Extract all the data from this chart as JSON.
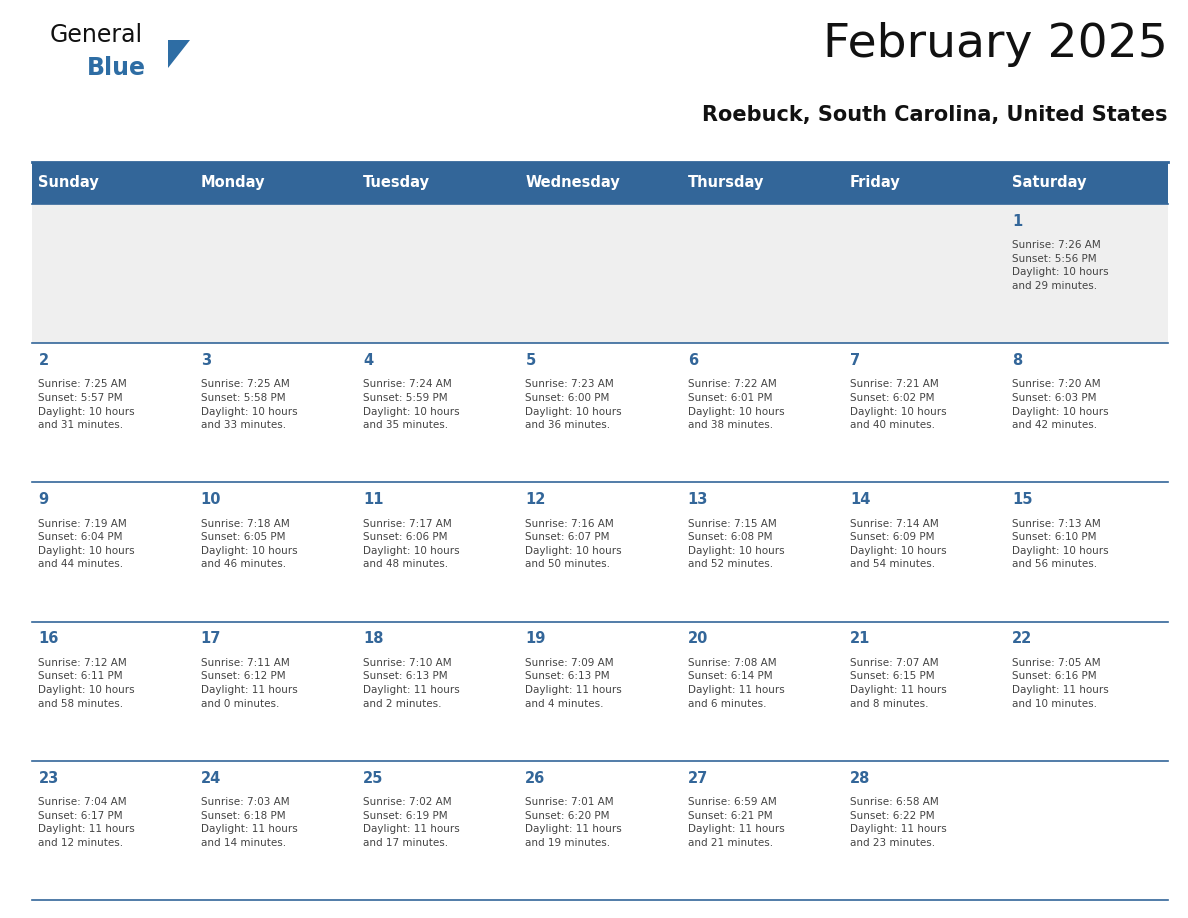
{
  "title": "February 2025",
  "subtitle": "Roebuck, South Carolina, United States",
  "header_bg": "#336699",
  "header_text_color": "#FFFFFF",
  "week1_bg": "#EFEFEF",
  "other_week_bg": "#FFFFFF",
  "day_number_color": "#336699",
  "info_text_color": "#444444",
  "border_color": "#336699",
  "days_of_week": [
    "Sunday",
    "Monday",
    "Tuesday",
    "Wednesday",
    "Thursday",
    "Friday",
    "Saturday"
  ],
  "weeks": [
    [
      {
        "day": null,
        "info": null
      },
      {
        "day": null,
        "info": null
      },
      {
        "day": null,
        "info": null
      },
      {
        "day": null,
        "info": null
      },
      {
        "day": null,
        "info": null
      },
      {
        "day": null,
        "info": null
      },
      {
        "day": "1",
        "info": "Sunrise: 7:26 AM\nSunset: 5:56 PM\nDaylight: 10 hours\nand 29 minutes."
      }
    ],
    [
      {
        "day": "2",
        "info": "Sunrise: 7:25 AM\nSunset: 5:57 PM\nDaylight: 10 hours\nand 31 minutes."
      },
      {
        "day": "3",
        "info": "Sunrise: 7:25 AM\nSunset: 5:58 PM\nDaylight: 10 hours\nand 33 minutes."
      },
      {
        "day": "4",
        "info": "Sunrise: 7:24 AM\nSunset: 5:59 PM\nDaylight: 10 hours\nand 35 minutes."
      },
      {
        "day": "5",
        "info": "Sunrise: 7:23 AM\nSunset: 6:00 PM\nDaylight: 10 hours\nand 36 minutes."
      },
      {
        "day": "6",
        "info": "Sunrise: 7:22 AM\nSunset: 6:01 PM\nDaylight: 10 hours\nand 38 minutes."
      },
      {
        "day": "7",
        "info": "Sunrise: 7:21 AM\nSunset: 6:02 PM\nDaylight: 10 hours\nand 40 minutes."
      },
      {
        "day": "8",
        "info": "Sunrise: 7:20 AM\nSunset: 6:03 PM\nDaylight: 10 hours\nand 42 minutes."
      }
    ],
    [
      {
        "day": "9",
        "info": "Sunrise: 7:19 AM\nSunset: 6:04 PM\nDaylight: 10 hours\nand 44 minutes."
      },
      {
        "day": "10",
        "info": "Sunrise: 7:18 AM\nSunset: 6:05 PM\nDaylight: 10 hours\nand 46 minutes."
      },
      {
        "day": "11",
        "info": "Sunrise: 7:17 AM\nSunset: 6:06 PM\nDaylight: 10 hours\nand 48 minutes."
      },
      {
        "day": "12",
        "info": "Sunrise: 7:16 AM\nSunset: 6:07 PM\nDaylight: 10 hours\nand 50 minutes."
      },
      {
        "day": "13",
        "info": "Sunrise: 7:15 AM\nSunset: 6:08 PM\nDaylight: 10 hours\nand 52 minutes."
      },
      {
        "day": "14",
        "info": "Sunrise: 7:14 AM\nSunset: 6:09 PM\nDaylight: 10 hours\nand 54 minutes."
      },
      {
        "day": "15",
        "info": "Sunrise: 7:13 AM\nSunset: 6:10 PM\nDaylight: 10 hours\nand 56 minutes."
      }
    ],
    [
      {
        "day": "16",
        "info": "Sunrise: 7:12 AM\nSunset: 6:11 PM\nDaylight: 10 hours\nand 58 minutes."
      },
      {
        "day": "17",
        "info": "Sunrise: 7:11 AM\nSunset: 6:12 PM\nDaylight: 11 hours\nand 0 minutes."
      },
      {
        "day": "18",
        "info": "Sunrise: 7:10 AM\nSunset: 6:13 PM\nDaylight: 11 hours\nand 2 minutes."
      },
      {
        "day": "19",
        "info": "Sunrise: 7:09 AM\nSunset: 6:13 PM\nDaylight: 11 hours\nand 4 minutes."
      },
      {
        "day": "20",
        "info": "Sunrise: 7:08 AM\nSunset: 6:14 PM\nDaylight: 11 hours\nand 6 minutes."
      },
      {
        "day": "21",
        "info": "Sunrise: 7:07 AM\nSunset: 6:15 PM\nDaylight: 11 hours\nand 8 minutes."
      },
      {
        "day": "22",
        "info": "Sunrise: 7:05 AM\nSunset: 6:16 PM\nDaylight: 11 hours\nand 10 minutes."
      }
    ],
    [
      {
        "day": "23",
        "info": "Sunrise: 7:04 AM\nSunset: 6:17 PM\nDaylight: 11 hours\nand 12 minutes."
      },
      {
        "day": "24",
        "info": "Sunrise: 7:03 AM\nSunset: 6:18 PM\nDaylight: 11 hours\nand 14 minutes."
      },
      {
        "day": "25",
        "info": "Sunrise: 7:02 AM\nSunset: 6:19 PM\nDaylight: 11 hours\nand 17 minutes."
      },
      {
        "day": "26",
        "info": "Sunrise: 7:01 AM\nSunset: 6:20 PM\nDaylight: 11 hours\nand 19 minutes."
      },
      {
        "day": "27",
        "info": "Sunrise: 6:59 AM\nSunset: 6:21 PM\nDaylight: 11 hours\nand 21 minutes."
      },
      {
        "day": "28",
        "info": "Sunrise: 6:58 AM\nSunset: 6:22 PM\nDaylight: 11 hours\nand 23 minutes."
      },
      {
        "day": null,
        "info": null
      }
    ]
  ],
  "logo_color_general": "#111111",
  "logo_color_blue": "#2E6DA4",
  "logo_triangle_color": "#2E6DA4",
  "title_color": "#111111",
  "subtitle_color": "#111111"
}
